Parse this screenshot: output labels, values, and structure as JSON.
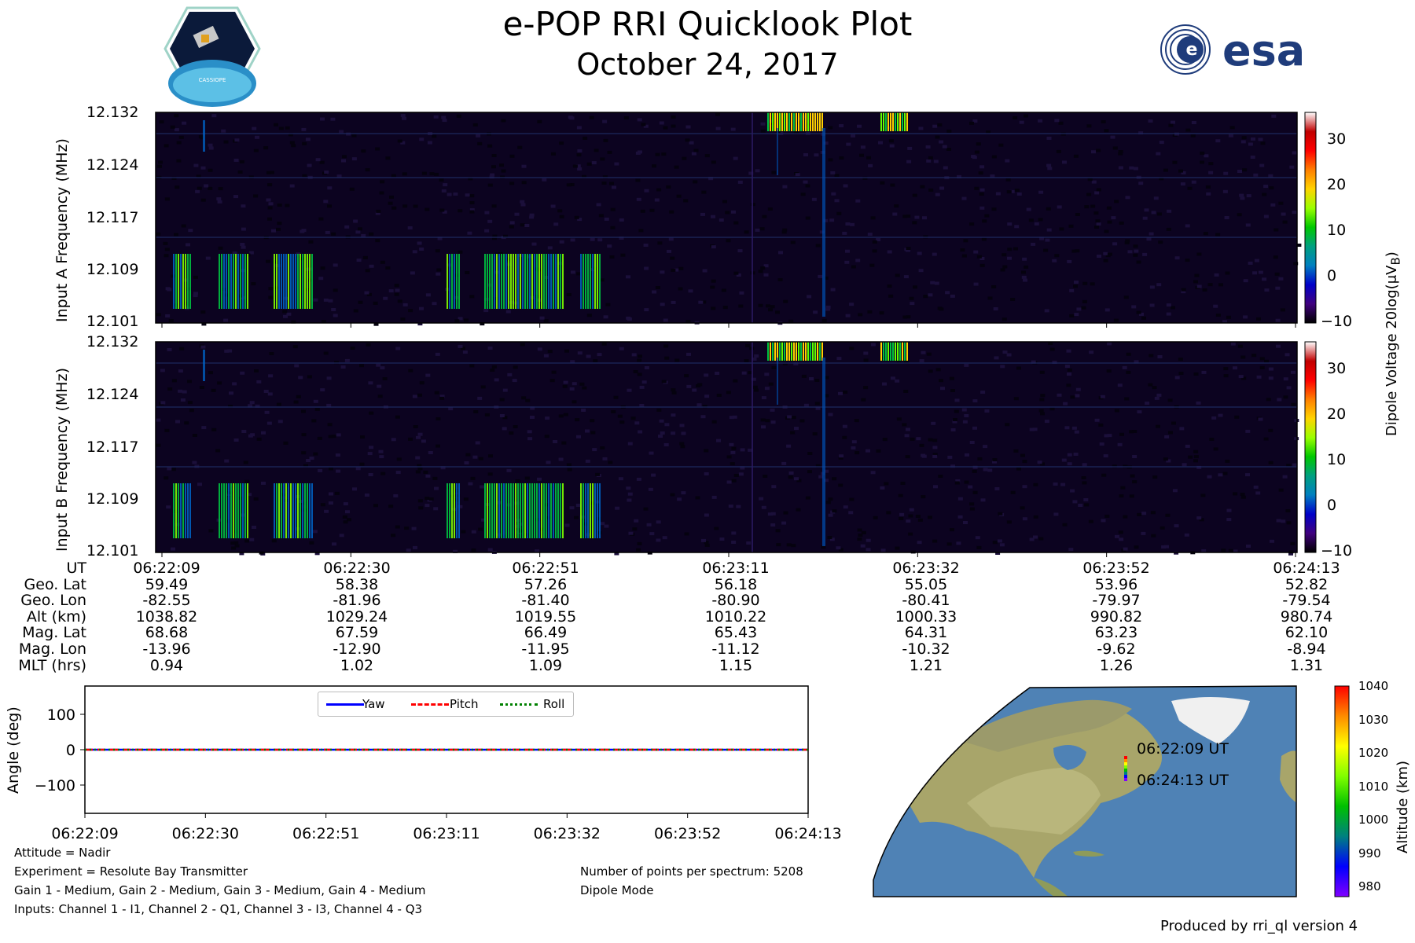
{
  "header": {
    "title": "e-POP RRI Quicklook Plot",
    "date": "October 24, 2017",
    "left_logo": "cassiope-mission-logo",
    "left_logo_text": "CASSIOPE",
    "right_logo": "esa-logo",
    "right_logo_text": "esa"
  },
  "spectrograms": [
    {
      "ylabel": "Input A Frequency (MHz)",
      "yticks": [
        "12.132",
        "12.124",
        "12.117",
        "12.109",
        "12.101"
      ]
    },
    {
      "ylabel": "Input B Frequency (MHz)",
      "yticks": [
        "12.132",
        "12.124",
        "12.117",
        "12.109",
        "12.101"
      ]
    }
  ],
  "colorbar_top": {
    "label": "Dipole Voltage 20log(μV",
    "label_sub": "B",
    "label_end": ")",
    "ticks": [
      "30",
      "20",
      "10",
      "0",
      "−10"
    ],
    "colors": [
      "#ffffff",
      "#c00000",
      "#ff0000",
      "#ff7f00",
      "#ffd400",
      "#9aff00",
      "#00c800",
      "#00a080",
      "#0080c0",
      "#0000c8",
      "#40007f",
      "#000000"
    ]
  },
  "ephemeris": {
    "rows": [
      {
        "label": "UT",
        "values": [
          "06:22:09",
          "06:22:30",
          "06:22:51",
          "06:23:11",
          "06:23:32",
          "06:23:52",
          "06:24:13"
        ]
      },
      {
        "label": "Geo. Lat",
        "values": [
          "59.49",
          "58.38",
          "57.26",
          "56.18",
          "55.05",
          "53.96",
          "52.82"
        ]
      },
      {
        "label": "Geo. Lon",
        "values": [
          "-82.55",
          "-81.96",
          "-81.40",
          "-80.90",
          "-80.41",
          "-79.97",
          "-79.54"
        ]
      },
      {
        "label": "Alt (km)",
        "values": [
          "1038.82",
          "1029.24",
          "1019.55",
          "1010.22",
          "1000.33",
          "990.82",
          "980.74"
        ]
      },
      {
        "label": "Mag. Lat",
        "values": [
          "68.68",
          "67.59",
          "66.49",
          "65.43",
          "64.31",
          "63.23",
          "62.10"
        ]
      },
      {
        "label": "Mag. Lon",
        "values": [
          "-13.96",
          "-12.90",
          "-11.95",
          "-11.12",
          "-10.32",
          "-9.62",
          "-8.94"
        ]
      },
      {
        "label": "MLT (hrs)",
        "values": [
          "0.94",
          "1.02",
          "1.09",
          "1.15",
          "1.21",
          "1.26",
          "1.31"
        ]
      }
    ]
  },
  "chart_data": {
    "type": "line",
    "ylabel": "Angle (deg)",
    "yticks": [
      "100",
      "0",
      "−100"
    ],
    "ylim": [
      -180,
      180
    ],
    "categories": [
      "06:22:09",
      "06:22:30",
      "06:22:51",
      "06:23:11",
      "06:23:32",
      "06:23:52",
      "06:24:13"
    ],
    "legend": "top-center",
    "series": [
      {
        "name": "Yaw",
        "values": [
          0,
          0,
          0,
          0,
          0,
          0,
          0
        ],
        "color": "#0000ff"
      },
      {
        "name": "Pitch",
        "values": [
          0,
          0,
          0,
          0,
          0,
          0,
          0
        ],
        "color": "#ff0000"
      },
      {
        "name": "Roll",
        "values": [
          0,
          0,
          0,
          0,
          0,
          0,
          0
        ],
        "color": "#008000"
      }
    ]
  },
  "map": {
    "start_label": "06:22:09 UT",
    "end_label": "06:24:13 UT",
    "colorbar_label": "Altitude (km)",
    "colorbar_ticks": [
      "1040",
      "1030",
      "1020",
      "1010",
      "1000",
      "990",
      "980"
    ],
    "colors": [
      "#ff0000",
      "#ff8c00",
      "#ffff00",
      "#80ff00",
      "#00c000",
      "#008080",
      "#0000ff",
      "#8000ff"
    ]
  },
  "info": {
    "attitude": "Attitude = Nadir",
    "experiment": "Experiment = Resolute Bay Transmitter",
    "gains": "Gain 1 - Medium, Gain 2 - Medium, Gain 3 - Medium, Gain 4 - Medium",
    "inputs": "Inputs: Channel 1 - I1, Channel 2 - Q1, Channel 3 - I3, Channel 4 - Q3",
    "points": "Number of points per spectrum: 5208",
    "mode": "Dipole Mode",
    "produced": "Produced by rri_ql version 4"
  }
}
